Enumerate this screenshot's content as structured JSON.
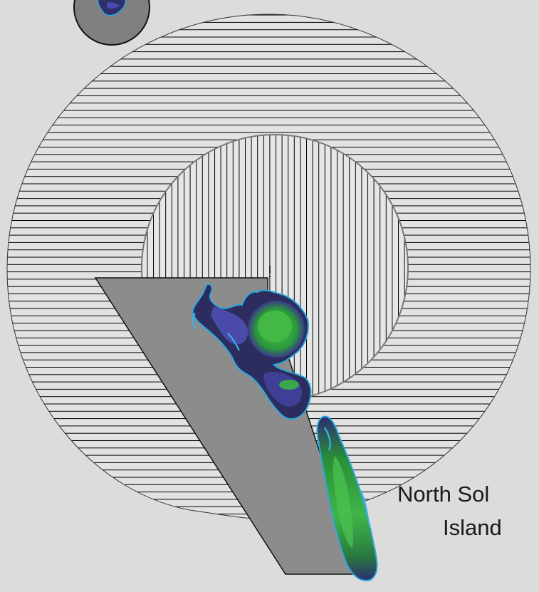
{
  "map": {
    "label_line1": "North Sol",
    "label_line2": "Island",
    "colors": {
      "background": "#dcdcdc",
      "outer_zone_fill": "#e2e2e2",
      "outer_zone_hatch": "#000000",
      "inner_zone_fill": "#e6e6e6",
      "inner_zone_hatch": "#000000",
      "polygon_fill": "#8c8c8c",
      "small_circle_fill": "#808080",
      "island_outer": "#2a2a5a",
      "island_mid": "#4a4aa0",
      "island_edge": "#30b0e0",
      "island_green": "#2fa040",
      "island_green_light": "#5ad060"
    }
  }
}
